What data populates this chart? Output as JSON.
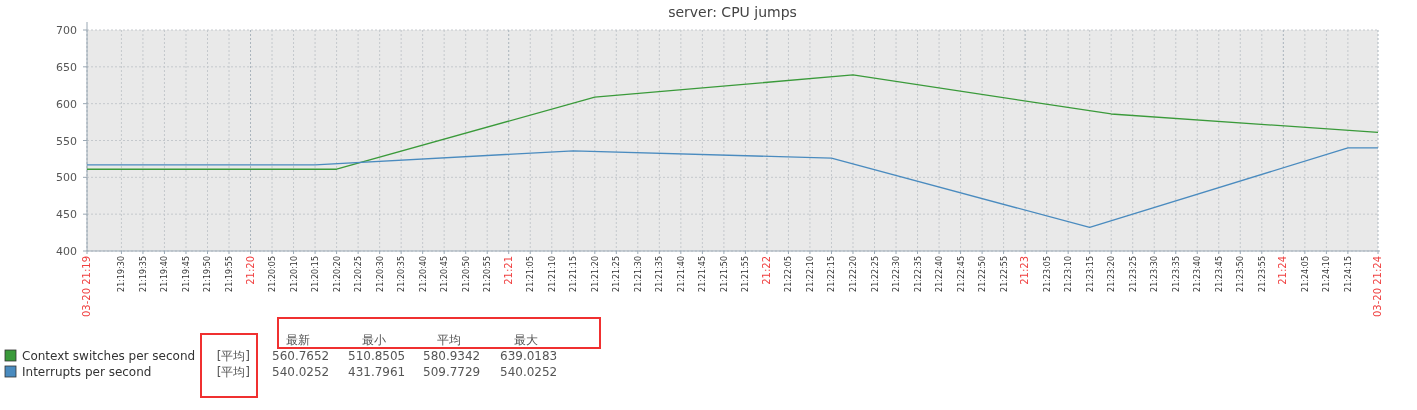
{
  "chart_data": {
    "type": "line",
    "title": "server: CPU jumps",
    "series": [
      {
        "name": "Context switches per second",
        "color": "#3a9a3a",
        "x": [
          21.322778,
          21.338889,
          21.355556,
          21.372222,
          21.388889,
          21.406111
        ],
        "values": [
          511,
          511,
          609,
          639,
          586,
          561
        ]
      },
      {
        "name": "Interrupts per second",
        "color": "#4a8bbf",
        "x": [
          21.322778,
          21.3375,
          21.354167,
          21.370833,
          21.3875,
          21.404167,
          21.406111
        ],
        "values": [
          517,
          517,
          536,
          526,
          432,
          540,
          540
        ]
      }
    ],
    "xlim": [
      21.322778,
      21.406111
    ],
    "ylim": [
      400,
      700
    ],
    "yticks": [
      400,
      450,
      500,
      550,
      600,
      650,
      700
    ],
    "xticks": [
      {
        "value": 21.322778,
        "label": "03-20 21:19"
      },
      {
        "value": 21.325,
        "label": "21:19:30"
      },
      {
        "value": 21.326389,
        "label": "21:19:35"
      },
      {
        "value": 21.327778,
        "label": "21:19:40"
      },
      {
        "value": 21.329167,
        "label": "21:19:45"
      },
      {
        "value": 21.330556,
        "label": "21:19:50"
      },
      {
        "value": 21.331944,
        "label": "21:19:55"
      },
      {
        "value": 21.333333,
        "label": "21:20"
      },
      {
        "value": 21.334722,
        "label": "21:20:05"
      },
      {
        "value": 21.336111,
        "label": "21:20:10"
      },
      {
        "value": 21.3375,
        "label": "21:20:15"
      },
      {
        "value": 21.338889,
        "label": "21:20:20"
      },
      {
        "value": 21.340278,
        "label": "21:20:25"
      },
      {
        "value": 21.341667,
        "label": "21:20:30"
      },
      {
        "value": 21.343056,
        "label": "21:20:35"
      },
      {
        "value": 21.344444,
        "label": "21:20:40"
      },
      {
        "value": 21.345833,
        "label": "21:20:45"
      },
      {
        "value": 21.347222,
        "label": "21:20:50"
      },
      {
        "value": 21.348611,
        "label": "21:20:55"
      },
      {
        "value": 21.35,
        "label": "21:21"
      },
      {
        "value": 21.351389,
        "label": "21:21:05"
      },
      {
        "value": 21.352778,
        "label": "21:21:10"
      },
      {
        "value": 21.354167,
        "label": "21:21:15"
      },
      {
        "value": 21.355556,
        "label": "21:21:20"
      },
      {
        "value": 21.356944,
        "label": "21:21:25"
      },
      {
        "value": 21.358333,
        "label": "21:21:30"
      },
      {
        "value": 21.359722,
        "label": "21:21:35"
      },
      {
        "value": 21.361111,
        "label": "21:21:40"
      },
      {
        "value": 21.3625,
        "label": "21:21:45"
      },
      {
        "value": 21.363889,
        "label": "21:21:50"
      },
      {
        "value": 21.365278,
        "label": "21:21:55"
      },
      {
        "value": 21.366667,
        "label": "21:22"
      },
      {
        "value": 21.368056,
        "label": "21:22:05"
      },
      {
        "value": 21.369444,
        "label": "21:22:10"
      },
      {
        "value": 21.370833,
        "label": "21:22:15"
      },
      {
        "value": 21.372222,
        "label": "21:22:20"
      },
      {
        "value": 21.373611,
        "label": "21:22:25"
      },
      {
        "value": 21.375,
        "label": "21:22:30"
      },
      {
        "value": 21.376389,
        "label": "21:22:35"
      },
      {
        "value": 21.377778,
        "label": "21:22:40"
      },
      {
        "value": 21.379167,
        "label": "21:22:45"
      },
      {
        "value": 21.380556,
        "label": "21:22:50"
      },
      {
        "value": 21.381944,
        "label": "21:22:55"
      },
      {
        "value": 21.383333,
        "label": "21:23"
      },
      {
        "value": 21.384722,
        "label": "21:23:05"
      },
      {
        "value": 21.386111,
        "label": "21:23:10"
      },
      {
        "value": 21.3875,
        "label": "21:23:15"
      },
      {
        "value": 21.388889,
        "label": "21:23:20"
      },
      {
        "value": 21.390278,
        "label": "21:23:25"
      },
      {
        "value": 21.391667,
        "label": "21:23:30"
      },
      {
        "value": 21.393056,
        "label": "21:23:35"
      },
      {
        "value": 21.394444,
        "label": "21:23:40"
      },
      {
        "value": 21.395833,
        "label": "21:23:45"
      },
      {
        "value": 21.397222,
        "label": "21:23:50"
      },
      {
        "value": 21.398611,
        "label": "21:23:55"
      },
      {
        "value": 21.4,
        "label": "21:24"
      },
      {
        "value": 21.401389,
        "label": "21:24:05"
      },
      {
        "value": 21.402778,
        "label": "21:24:10"
      },
      {
        "value": 21.404167,
        "label": "21:24:15"
      },
      {
        "value": 21.406111,
        "label": "03-20 21:24"
      }
    ],
    "grid": true,
    "legend": "bottom",
    "annotations": [
      "最新",
      "最小",
      "平均",
      "最大",
      "[平均]",
      "560.7652",
      "510.8505",
      "580.9342",
      "639.0183",
      "[平均]",
      "540.0252",
      "431.7961",
      "509.7729",
      "540.0252"
    ]
  }
}
